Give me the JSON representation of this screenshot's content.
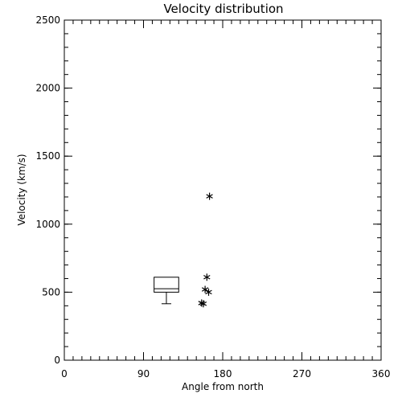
{
  "chart_data": {
    "type": "scatter",
    "title": "Velocity distribution",
    "xlabel": "Angle from north",
    "ylabel": "Velocity (km/s)",
    "xlim": [
      0,
      360
    ],
    "ylim": [
      0,
      2500
    ],
    "xticks": [
      0,
      90,
      180,
      270,
      360
    ],
    "yticks": [
      0,
      500,
      1000,
      1500,
      2000,
      2500
    ],
    "x_minor_step": 10,
    "y_minor_step": 100,
    "grid": false,
    "series": [
      {
        "marker": "asterisk",
        "points": [
          {
            "x": 165,
            "y": 1205
          },
          {
            "x": 162,
            "y": 610
          },
          {
            "x": 160,
            "y": 520
          },
          {
            "x": 164,
            "y": 500
          },
          {
            "x": 156,
            "y": 420
          },
          {
            "x": 158,
            "y": 415
          }
        ]
      }
    ],
    "boxplot": {
      "x_min": 102,
      "x_max": 130,
      "whisker_low": 415,
      "q1": 500,
      "median": 525,
      "q3": 610,
      "whisker_high": 610
    }
  }
}
